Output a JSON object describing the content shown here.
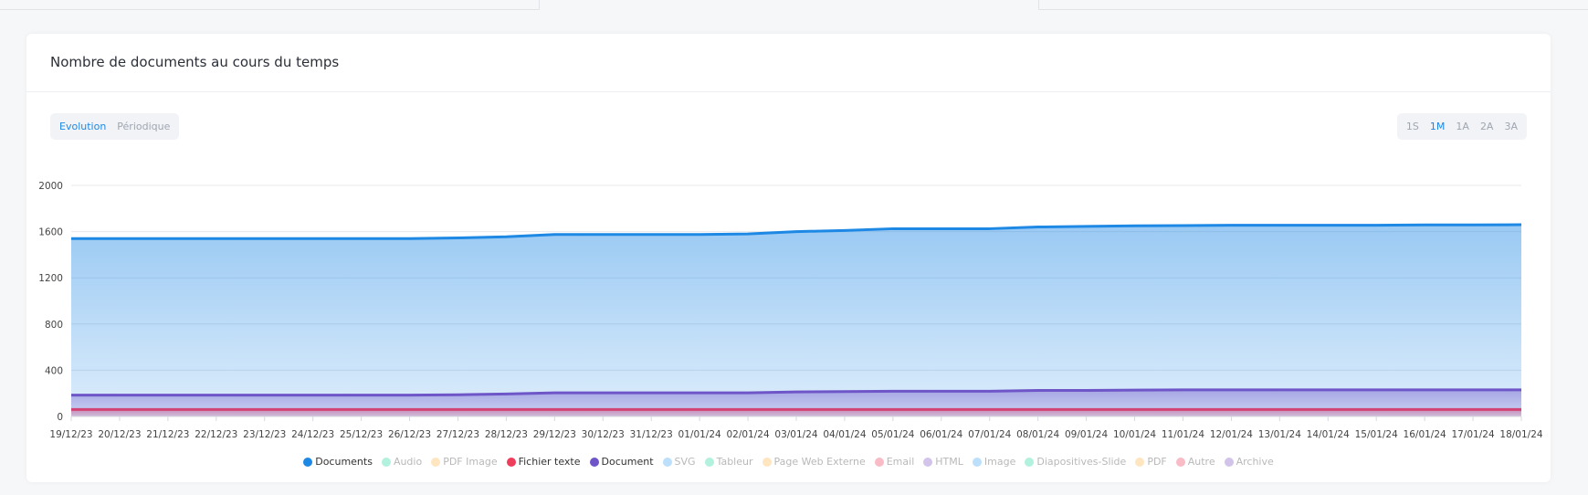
{
  "chart_data": {
    "type": "area",
    "title": "Nombre de documents au cours du temps",
    "controls": {
      "modes": [
        "Evolution",
        "Périodique"
      ],
      "active_mode": 0,
      "ranges": [
        "1S",
        "1M",
        "1A",
        "2A",
        "3A"
      ],
      "active_range": 1
    },
    "categories": [
      "19/12/23",
      "20/12/23",
      "21/12/23",
      "22/12/23",
      "23/12/23",
      "24/12/23",
      "25/12/23",
      "26/12/23",
      "27/12/23",
      "28/12/23",
      "29/12/23",
      "30/12/23",
      "31/12/23",
      "01/01/24",
      "02/01/24",
      "03/01/24",
      "04/01/24",
      "05/01/24",
      "06/01/24",
      "07/01/24",
      "08/01/24",
      "09/01/24",
      "10/01/24",
      "11/01/24",
      "12/01/24",
      "13/01/24",
      "14/01/24",
      "15/01/24",
      "16/01/24",
      "17/01/24",
      "18/01/24"
    ],
    "ylim": [
      0,
      2000
    ],
    "yticks": [
      0,
      400,
      800,
      1200,
      1600,
      2000
    ],
    "grid": true,
    "series": [
      {
        "name": "Documents",
        "color": "#1e88e5",
        "values": [
          1540,
          1540,
          1540,
          1540,
          1540,
          1540,
          1540,
          1540,
          1545,
          1555,
          1575,
          1575,
          1575,
          1575,
          1580,
          1600,
          1610,
          1625,
          1625,
          1625,
          1640,
          1645,
          1650,
          1652,
          1655,
          1655,
          1655,
          1655,
          1658,
          1658,
          1660
        ]
      },
      {
        "name": "Audio",
        "color": "#26d9a0",
        "hidden": true
      },
      {
        "name": "PDF Image",
        "color": "#ffb74d",
        "hidden": true
      },
      {
        "name": "Fichier texte",
        "color": "#ef3e5c",
        "values": [
          60,
          60,
          60,
          60,
          60,
          60,
          60,
          60,
          60,
          60,
          60,
          60,
          60,
          60,
          60,
          60,
          60,
          60,
          60,
          60,
          60,
          60,
          60,
          60,
          60,
          60,
          60,
          60,
          60,
          60,
          60
        ]
      },
      {
        "name": "Document",
        "color": "#6e55c8",
        "values": [
          185,
          185,
          185,
          185,
          185,
          185,
          185,
          185,
          188,
          195,
          205,
          205,
          205,
          205,
          205,
          212,
          215,
          218,
          218,
          218,
          225,
          225,
          228,
          230,
          230,
          230,
          230,
          230,
          230,
          230,
          230
        ]
      },
      {
        "name": "SVG",
        "color": "#42a5f5",
        "hidden": true
      },
      {
        "name": "Tableur",
        "color": "#26d9a0",
        "hidden": true
      },
      {
        "name": "Page Web Externe",
        "color": "#ffb74d",
        "hidden": true
      },
      {
        "name": "Email",
        "color": "#ef3e5c",
        "hidden": true
      },
      {
        "name": "HTML",
        "color": "#7e57c2",
        "hidden": true
      },
      {
        "name": "Image",
        "color": "#42a5f5",
        "hidden": true
      },
      {
        "name": "Diapositives-Slide",
        "color": "#26d9a0",
        "hidden": true
      },
      {
        "name": "PDF",
        "color": "#ffb74d",
        "hidden": true
      },
      {
        "name": "Autre",
        "color": "#ef3e5c",
        "hidden": true
      },
      {
        "name": "Archive",
        "color": "#7e57c2",
        "hidden": true
      }
    ]
  }
}
